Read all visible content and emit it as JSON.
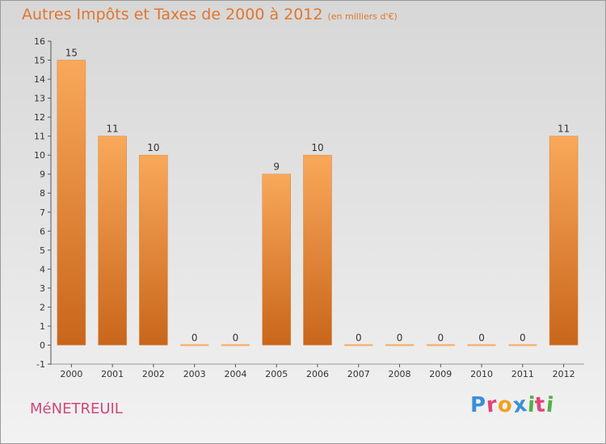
{
  "header": {
    "title": "Autres Impôts et Taxes de 2000 à 2012",
    "unit": "(en milliers d'€)"
  },
  "footer": {
    "commune": "MéNETREUIL",
    "logo_text": "Proxiti"
  },
  "colors": {
    "accent": "#e0762e",
    "commune": "#d0487a",
    "bar_light": "#f9a85a",
    "bar_dark": "#c9661b",
    "logo_letters": [
      "#3a8fd8",
      "#e2447a",
      "#f0a020",
      "#3a8fd8",
      "#52b043",
      "#e2447a",
      "#52b043"
    ]
  },
  "chart_data": {
    "type": "bar",
    "title": "Autres Impôts et Taxes de 2000 à 2012",
    "subtitle": "(en milliers d'€)",
    "categories": [
      "2000",
      "2001",
      "2002",
      "2003",
      "2004",
      "2005",
      "2006",
      "2007",
      "2008",
      "2009",
      "2010",
      "2011",
      "2012"
    ],
    "values": [
      15,
      11,
      10,
      0,
      0,
      9,
      10,
      0,
      0,
      0,
      0,
      0,
      11
    ],
    "ylim": [
      -1,
      16
    ],
    "yticks": [
      -1,
      0,
      1,
      2,
      3,
      4,
      5,
      6,
      7,
      8,
      9,
      10,
      11,
      12,
      13,
      14,
      15,
      16
    ],
    "xlabel": "",
    "ylabel": "",
    "data_labels": true,
    "grid": false
  }
}
